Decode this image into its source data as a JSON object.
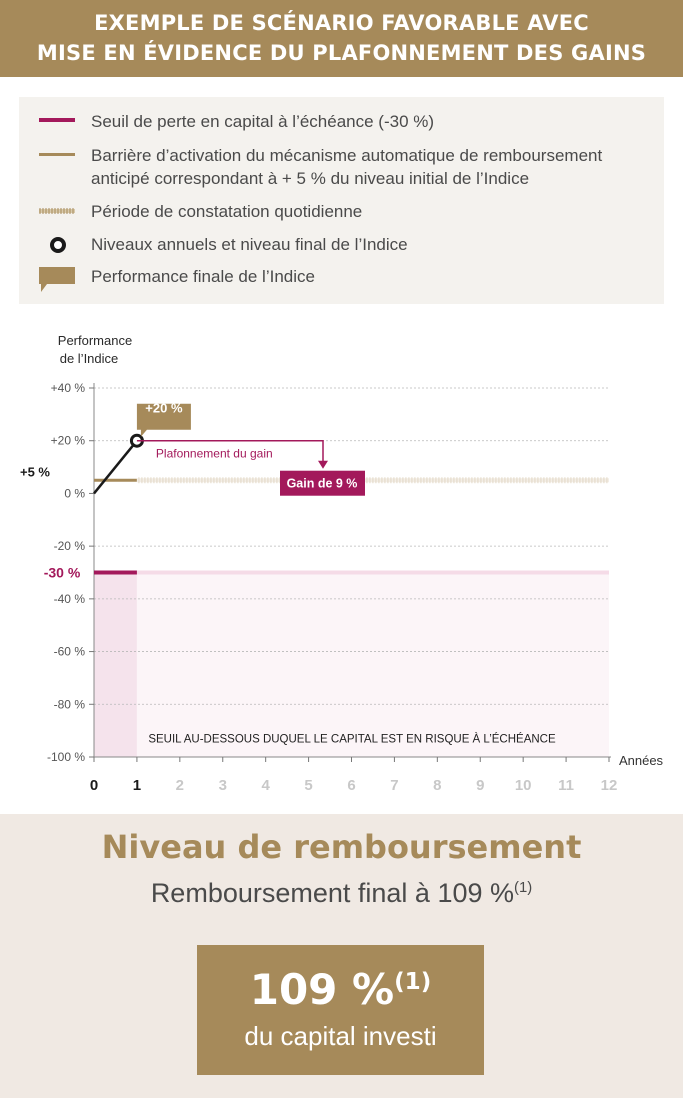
{
  "header": {
    "line1": "EXEMPLE DE SCÉNARIO FAVORABLE AVEC",
    "line2": "MISE EN ÉVIDENCE DU PLAFONNEMENT DES GAINS"
  },
  "legend": {
    "items": [
      {
        "label": "Seuil de perte en capital à l’échéance (-30 %)",
        "symbol": "magenta-line",
        "color": "#a3195b"
      },
      {
        "label": "Barrière d’activation du mécanisme automatique de remboursement anticipé correspondant à + 5 % du niveau initial de l’Indice",
        "symbol": "gold-line",
        "color": "#a68a5a"
      },
      {
        "label": "Période de constatation quotidienne",
        "symbol": "hatched-line",
        "color": "#c9b58f"
      },
      {
        "label": "Niveaux annuels et niveau final de l’Indice",
        "symbol": "circle-marker",
        "color": "#1a1a1a"
      },
      {
        "label": "Performance finale de l’Indice",
        "symbol": "callout-box",
        "color": "#a68a5a"
      }
    ]
  },
  "chart_data": {
    "type": "line",
    "ylabel": "Performance de l’Indice",
    "xlabel": "Années",
    "x_ticks": [
      "0",
      "1",
      "2",
      "3",
      "4",
      "5",
      "6",
      "7",
      "8",
      "9",
      "10",
      "11",
      "12"
    ],
    "y_ticks": [
      "+40 %",
      "+20 %",
      "0 %",
      "-20 %",
      "-40 %",
      "-60 %",
      "-80 %",
      "-100 %"
    ],
    "xlim": [
      0,
      12
    ],
    "ylim": [
      -100,
      40
    ],
    "series": [
      {
        "x": [
          0,
          1
        ],
        "y": [
          0,
          20
        ]
      }
    ],
    "barrier_label": "+5 %",
    "barrier_value": 5,
    "threshold_label": "-30 %",
    "threshold_value": -30,
    "final_performance_label": "+20 %",
    "cap_label": "Plafonnement du gain",
    "gain_label": "Gain de 9 %",
    "risk_zone_label": "SEUIL AU-DESSOUS DUQUEL LE CAPITAL EST EN RISQUE À L’ÉCHÉANCE",
    "colors": {
      "magenta": "#a3195b",
      "gold": "#a68a5a",
      "line": "#1a1a1a",
      "risk_zone": "#f5e3ec",
      "grid": "#b8b8b8"
    }
  },
  "result": {
    "title": "Niveau de remboursement",
    "subtitle": "Remboursement final à 109 %",
    "subtitle_note": "(1)",
    "box_value": "109 %",
    "box_note": "(1)",
    "box_caption": "du capital investi"
  }
}
